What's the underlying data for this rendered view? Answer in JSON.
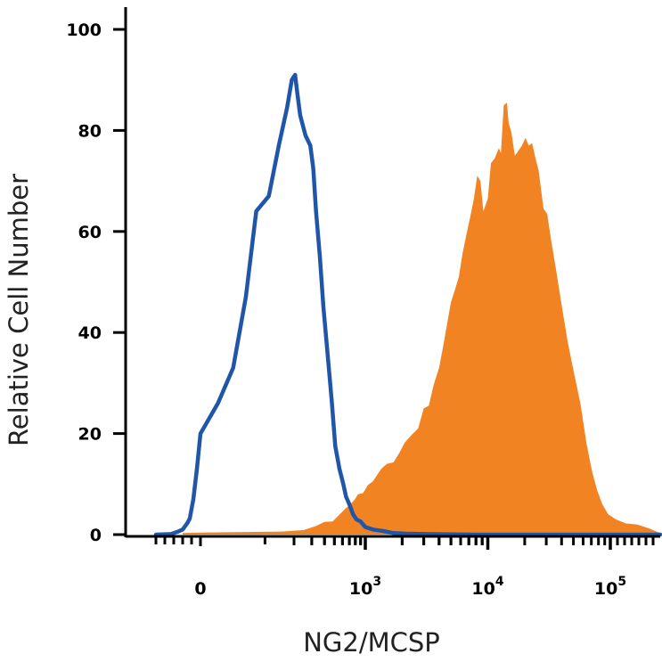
{
  "chart_data": {
    "type": "area",
    "xlabel": "NG2/MCSP",
    "ylabel": "Relative Cell Number",
    "ylim": [
      0,
      100
    ],
    "x_scale": "biexponential",
    "y_ticks": [
      "0",
      "20",
      "40",
      "60",
      "80",
      "100"
    ],
    "x_ticks": [
      {
        "base": "0",
        "exp": ""
      },
      {
        "base": "10",
        "exp": "3"
      },
      {
        "base": "10",
        "exp": "4"
      },
      {
        "base": "10",
        "exp": "5"
      }
    ],
    "grid": false,
    "colors": {
      "stained": "#F28322",
      "control": "#1F56A8",
      "axis": "#000000"
    },
    "series": [
      {
        "style": "filled",
        "color": "#F28322",
        "points": [
          [
            -200,
            0.3
          ],
          [
            0,
            0.4
          ],
          [
            150,
            0.6
          ],
          [
            250,
            0.9
          ],
          [
            330,
            1.7
          ],
          [
            400,
            2.5
          ],
          [
            480,
            2.6
          ],
          [
            550,
            3.8
          ],
          [
            630,
            5.0
          ],
          [
            700,
            5.8
          ],
          [
            780,
            6.8
          ],
          [
            850,
            8.0
          ],
          [
            950,
            8.2
          ],
          [
            1050,
            9.8
          ],
          [
            1150,
            10.5
          ],
          [
            1250,
            11.8
          ],
          [
            1350,
            13.0
          ],
          [
            1500,
            14.0
          ],
          [
            1700,
            14.3
          ],
          [
            1900,
            16.2
          ],
          [
            2100,
            18.2
          ],
          [
            2400,
            19.8
          ],
          [
            2700,
            21.0
          ],
          [
            3000,
            25.0
          ],
          [
            3300,
            25.5
          ],
          [
            3600,
            29.5
          ],
          [
            4000,
            33.0
          ],
          [
            4300,
            37.0
          ],
          [
            4600,
            41.0
          ],
          [
            5000,
            46.0
          ],
          [
            5400,
            48.5
          ],
          [
            5800,
            51.0
          ],
          [
            6200,
            55.5
          ],
          [
            6700,
            59.5
          ],
          [
            7200,
            63.0
          ],
          [
            7700,
            66.5
          ],
          [
            8200,
            71.0
          ],
          [
            8700,
            70.0
          ],
          [
            9200,
            64.0
          ],
          [
            10000,
            66.5
          ],
          [
            10600,
            73.5
          ],
          [
            11400,
            74.5
          ],
          [
            12300,
            76.5
          ],
          [
            12800,
            75.5
          ],
          [
            13500,
            85.0
          ],
          [
            14300,
            85.5
          ],
          [
            14800,
            81.5
          ],
          [
            15600,
            79.5
          ],
          [
            16600,
            75.0
          ],
          [
            17800,
            76.0
          ],
          [
            19000,
            77.0
          ],
          [
            20300,
            78.5
          ],
          [
            21600,
            77.0
          ],
          [
            23000,
            77.5
          ],
          [
            24500,
            74.5
          ],
          [
            26000,
            72.0
          ],
          [
            28500,
            64.5
          ],
          [
            30500,
            63.5
          ],
          [
            33000,
            58.0
          ],
          [
            36000,
            52.5
          ],
          [
            40000,
            45.5
          ],
          [
            45000,
            38.0
          ],
          [
            51000,
            31.5
          ],
          [
            57000,
            26.0
          ],
          [
            64000,
            18.0
          ],
          [
            71000,
            12.5
          ],
          [
            78000,
            8.8
          ],
          [
            86000,
            6.0
          ],
          [
            96000,
            4.0
          ],
          [
            108000,
            3.0
          ],
          [
            122000,
            2.2
          ],
          [
            138000,
            2.0
          ],
          [
            155000,
            1.2
          ],
          [
            170000,
            0.3
          ]
        ]
      },
      {
        "style": "line",
        "color": "#1F56A8",
        "points": [
          [
            -500,
            0.0
          ],
          [
            -330,
            0.1
          ],
          [
            -250,
            0.6
          ],
          [
            -200,
            1.0
          ],
          [
            -150,
            2.2
          ],
          [
            -120,
            3.2
          ],
          [
            -80,
            7.0
          ],
          [
            -40,
            13.0
          ],
          [
            0,
            20.0
          ],
          [
            20,
            26.0
          ],
          [
            40,
            33.0
          ],
          [
            60,
            47.0
          ],
          [
            80,
            64.0
          ],
          [
            110,
            67.0
          ],
          [
            140,
            77.0
          ],
          [
            170,
            84.5
          ],
          [
            190,
            90.0
          ],
          [
            205,
            91.0
          ],
          [
            215,
            87.5
          ],
          [
            230,
            83.0
          ],
          [
            260,
            79.0
          ],
          [
            290,
            77.0
          ],
          [
            310,
            72.5
          ],
          [
            330,
            64.0
          ],
          [
            360,
            55.0
          ],
          [
            390,
            45.0
          ],
          [
            430,
            35.5
          ],
          [
            470,
            26.5
          ],
          [
            510,
            17.5
          ],
          [
            560,
            13.0
          ],
          [
            610,
            10.0
          ],
          [
            650,
            7.5
          ],
          [
            700,
            6.0
          ],
          [
            760,
            4.0
          ],
          [
            820,
            3.0
          ],
          [
            900,
            2.6
          ],
          [
            1000,
            1.5
          ],
          [
            1150,
            1.0
          ],
          [
            1400,
            0.7
          ],
          [
            1700,
            0.3
          ],
          [
            2100,
            0.2
          ],
          [
            3000,
            0.1
          ],
          [
            8000,
            0.0
          ],
          [
            170000,
            0.0
          ]
        ]
      }
    ]
  }
}
